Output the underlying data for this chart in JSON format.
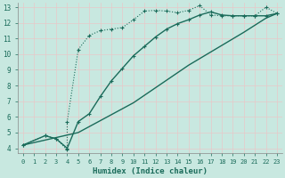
{
  "xlabel": "Humidex (Indice chaleur)",
  "bg_color": "#c8e8e0",
  "grid_color_minor": "#e8c8c8",
  "grid_color_major": "#d8b8b8",
  "line_color": "#1a6b5a",
  "xlim": [
    -0.5,
    23.5
  ],
  "ylim": [
    3.7,
    13.3
  ],
  "xticks": [
    0,
    1,
    2,
    3,
    4,
    5,
    6,
    7,
    8,
    9,
    10,
    11,
    12,
    13,
    14,
    15,
    16,
    17,
    18,
    19,
    20,
    21,
    22,
    23
  ],
  "yticks": [
    4,
    5,
    6,
    7,
    8,
    9,
    10,
    11,
    12,
    13
  ],
  "line1_x": [
    0,
    2,
    3,
    4,
    4,
    5,
    6,
    7,
    8,
    9,
    10,
    11,
    12,
    13,
    14,
    15,
    16,
    17,
    18,
    19,
    20,
    21,
    22,
    23
  ],
  "line1_y": [
    4.2,
    4.8,
    4.6,
    3.9,
    5.7,
    10.3,
    11.2,
    11.5,
    11.6,
    11.7,
    12.2,
    12.75,
    12.8,
    12.75,
    12.65,
    12.8,
    13.1,
    12.5,
    12.45,
    12.45,
    12.45,
    12.45,
    13.0,
    12.6
  ],
  "line2_x": [
    0,
    2,
    3,
    4,
    5,
    6,
    7,
    8,
    9,
    10,
    11,
    12,
    13,
    14,
    15,
    16,
    17,
    18,
    19,
    20,
    21,
    22,
    23
  ],
  "line2_y": [
    4.2,
    4.8,
    4.6,
    4.0,
    5.7,
    6.2,
    7.3,
    8.3,
    9.1,
    9.9,
    10.5,
    11.1,
    11.6,
    11.95,
    12.2,
    12.5,
    12.7,
    12.5,
    12.45,
    12.45,
    12.45,
    12.45,
    12.6
  ],
  "line3_x": [
    0,
    5,
    10,
    15,
    20,
    22,
    23
  ],
  "line3_y": [
    4.2,
    5.0,
    6.9,
    9.3,
    11.4,
    12.3,
    12.6
  ]
}
